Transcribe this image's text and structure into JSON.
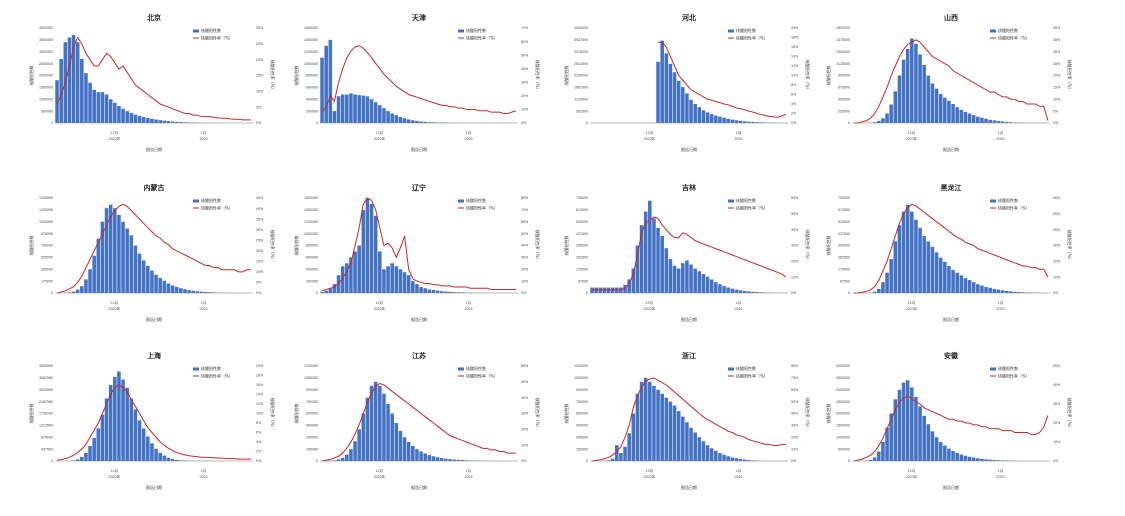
{
  "legend": {
    "bar_label": "核酸阳性数",
    "line_label": "核酸阳性率（%）"
  },
  "axes": {
    "y_left_label": "核酸阳性数",
    "y_right_label": "核酸阳性率（%）",
    "x_label": "报告日期",
    "month_label_dec": "12月",
    "month_label_jan": "1月",
    "year_label_2022": "2022年",
    "year_label_2023": "2023"
  },
  "colors": {
    "bar": "#4472c4",
    "line": "#c0282d",
    "axis": "#7f7f7f"
  },
  "chart_data": [
    {
      "type": "bar",
      "title": "北京",
      "ylim": [
        0,
        4000000
      ],
      "y2lim": [
        0,
        30
      ],
      "y2step": 5,
      "bar_values": [
        1800000,
        2700000,
        3400000,
        3600000,
        3700000,
        3400000,
        2700000,
        2100000,
        1700000,
        1400000,
        1300000,
        1300000,
        1200000,
        1000000,
        850000,
        720000,
        600000,
        500000,
        420000,
        350000,
        300000,
        250000,
        210000,
        180000,
        150000,
        120000,
        100000,
        80000,
        60000,
        50000,
        40000,
        30000,
        25000,
        20000,
        15000,
        12000,
        10000,
        8000,
        6000,
        5000,
        4000,
        3000,
        2000,
        2000,
        1000,
        1000,
        1000,
        1000
      ],
      "line_values": [
        6,
        9,
        13,
        18,
        24,
        27,
        25,
        22,
        20,
        18,
        18,
        20,
        22,
        21,
        19,
        17,
        18,
        16,
        14,
        12,
        11,
        10,
        9,
        8,
        7,
        6,
        5.5,
        5,
        4.5,
        4,
        3.5,
        3,
        3,
        2.5,
        2.5,
        2,
        2,
        2,
        1.8,
        1.6,
        1.5,
        1.5,
        1.3,
        1.2,
        1.2,
        1,
        1,
        1
      ]
    },
    {
      "type": "bar",
      "title": "天津",
      "ylim": [
        0,
        1600000
      ],
      "y2lim": [
        0,
        70
      ],
      "y2step": 10,
      "bar_values": [
        1100000,
        1300000,
        1400000,
        200000,
        450000,
        480000,
        480000,
        500000,
        480000,
        470000,
        460000,
        450000,
        400000,
        350000,
        300000,
        250000,
        200000,
        160000,
        130000,
        100000,
        80000,
        60000,
        45000,
        35000,
        25000,
        20000,
        15000,
        12000,
        10000,
        8000,
        6000,
        5000,
        4000,
        3000,
        3000,
        2000,
        2000,
        2000,
        1000,
        1000,
        1000,
        1000,
        1000,
        1000,
        1000,
        1000,
        1000,
        1000
      ],
      "line_values": [
        8,
        12,
        20,
        16,
        30,
        40,
        48,
        53,
        56,
        57,
        55,
        52,
        48,
        44,
        40,
        36,
        33,
        30,
        27,
        25,
        23,
        21,
        20,
        19,
        18,
        17,
        16,
        15,
        14,
        13,
        13,
        12,
        12,
        11,
        11,
        10,
        10,
        10,
        9,
        9,
        9,
        8,
        8,
        8,
        7,
        7,
        8,
        9
      ]
    },
    {
      "type": "bar",
      "title": "河北",
      "ylim": [
        0,
        4500000
      ],
      "y2lim": [
        0,
        20
      ],
      "y2step": 2,
      "bar_values": [
        0,
        0,
        0,
        0,
        0,
        0,
        0,
        0,
        0,
        0,
        0,
        0,
        0,
        0,
        0,
        0,
        2900000,
        3900000,
        3300000,
        2800000,
        2400000,
        2000000,
        1700000,
        1400000,
        1100000,
        900000,
        750000,
        600000,
        500000,
        420000,
        350000,
        300000,
        250000,
        200000,
        160000,
        130000,
        100000,
        80000,
        60000,
        50000,
        40000,
        30000,
        25000,
        20000,
        15000,
        12000,
        10000,
        8000
      ],
      "line_values": [
        null,
        null,
        null,
        null,
        null,
        null,
        null,
        null,
        null,
        null,
        null,
        null,
        null,
        null,
        null,
        null,
        17,
        17,
        16,
        14,
        12,
        10,
        9,
        8,
        7,
        6.5,
        6,
        5.5,
        5,
        4.8,
        4.5,
        4.3,
        4,
        3.8,
        3.5,
        3.2,
        3,
        2.8,
        2.5,
        2.3,
        2,
        1.8,
        1.6,
        1.4,
        1.3,
        1.2,
        1.5,
        1.8
      ]
    },
    {
      "type": "bar",
      "title": "山西",
      "ylim": [
        0,
        1800000
      ],
      "y2lim": [
        0,
        40
      ],
      "y2step": 5,
      "bar_values": [
        0,
        0,
        0,
        1000,
        5000,
        15000,
        40000,
        90000,
        180000,
        350000,
        600000,
        900000,
        1200000,
        1400000,
        1600000,
        1500000,
        1300000,
        1100000,
        900000,
        750000,
        650000,
        550000,
        480000,
        420000,
        360000,
        300000,
        250000,
        210000,
        180000,
        150000,
        120000,
        100000,
        80000,
        60000,
        50000,
        40000,
        30000,
        20000,
        15000,
        10000,
        8000,
        6000,
        5000,
        4000,
        3000,
        2000,
        1000,
        1000
      ],
      "line_values": [
        0,
        0,
        0.5,
        1,
        2,
        4,
        7,
        11,
        15,
        20,
        24,
        28,
        31,
        33,
        34,
        35,
        34,
        32,
        30,
        28,
        27,
        26,
        25,
        24,
        22,
        21,
        20,
        19,
        18,
        17,
        16,
        15,
        14,
        13,
        13,
        12,
        11,
        11,
        10,
        10,
        9,
        9,
        8,
        8,
        8,
        7,
        7,
        1
      ]
    },
    {
      "type": "bar",
      "title": "内蒙古",
      "ylim": [
        0,
        1400000
      ],
      "y2lim": [
        0,
        45
      ],
      "y2step": 5,
      "bar_values": [
        0,
        1000,
        3000,
        8000,
        20000,
        50000,
        100000,
        200000,
        350000,
        550000,
        800000,
        1050000,
        1250000,
        1300000,
        1250000,
        1150000,
        1050000,
        950000,
        850000,
        700000,
        580000,
        480000,
        400000,
        330000,
        270000,
        220000,
        180000,
        140000,
        110000,
        90000,
        70000,
        55000,
        42000,
        33000,
        25000,
        20000,
        15000,
        12000,
        9000,
        7000,
        5000,
        4000,
        3000,
        2000,
        2000,
        1000,
        1000,
        1000
      ],
      "line_values": [
        0,
        0.5,
        1,
        2,
        3,
        5,
        8,
        12,
        16,
        20,
        24,
        28,
        32,
        36,
        39,
        41,
        42,
        41,
        39,
        37,
        35,
        33,
        31,
        29,
        27,
        26,
        24,
        23,
        21,
        20,
        19,
        18,
        17,
        16,
        15,
        14,
        13,
        13,
        12,
        12,
        11,
        11,
        11,
        11,
        10,
        10,
        11,
        11
      ]
    },
    {
      "type": "bar",
      "title": "辽宁",
      "ylim": [
        0,
        1600000
      ],
      "y2lim": [
        0,
        80
      ],
      "y2step": 10,
      "bar_values": [
        20000,
        40000,
        80000,
        150000,
        300000,
        450000,
        500000,
        600000,
        700000,
        800000,
        1400000,
        1600000,
        1500000,
        1300000,
        700000,
        400000,
        450000,
        500000,
        450000,
        400000,
        350000,
        300000,
        200000,
        150000,
        100000,
        80000,
        60000,
        50000,
        40000,
        30000,
        25000,
        20000,
        15000,
        12000,
        10000,
        8000,
        6000,
        5000,
        4000,
        3000,
        2000,
        2000,
        1000,
        1000,
        1000,
        1000,
        1000,
        1000
      ],
      "line_values": [
        2,
        3,
        4,
        5,
        8,
        12,
        18,
        25,
        40,
        55,
        75,
        80,
        78,
        70,
        55,
        40,
        42,
        38,
        30,
        38,
        48,
        20,
        12,
        10,
        9,
        8,
        8,
        7,
        7,
        6,
        6,
        6,
        5,
        5,
        5,
        5,
        4,
        4,
        4,
        4,
        4,
        3,
        3,
        3,
        3,
        3,
        3,
        3
      ]
    },
    {
      "type": "bar",
      "title": "吉林",
      "ylim": [
        0,
        700000
      ],
      "y2lim": [
        0,
        60
      ],
      "y2step": 10,
      "bar_values": [
        40000,
        40000,
        40000,
        40000,
        40000,
        40000,
        40000,
        40000,
        60000,
        100000,
        180000,
        350000,
        500000,
        600000,
        680000,
        550000,
        480000,
        420000,
        330000,
        250000,
        200000,
        180000,
        220000,
        240000,
        210000,
        180000,
        160000,
        140000,
        120000,
        100000,
        80000,
        65000,
        50000,
        40000,
        32000,
        25000,
        20000,
        15000,
        12000,
        9000,
        7000,
        5000,
        4000,
        3000,
        2000,
        2000,
        1000,
        1000
      ],
      "line_values": [
        2,
        2,
        2,
        2,
        2,
        2,
        2,
        2,
        3,
        6,
        12,
        24,
        38,
        44,
        46,
        48,
        47,
        43,
        40,
        37,
        35,
        35,
        38,
        37,
        35,
        33,
        32,
        31,
        30,
        29,
        28,
        27,
        26,
        25,
        24,
        23,
        22,
        21,
        20,
        19,
        18,
        17,
        16,
        15,
        14,
        13,
        12,
        10
      ]
    },
    {
      "type": "bar",
      "title": "黑龙江",
      "ylim": [
        0,
        700000
      ],
      "y2lim": [
        0,
        60
      ],
      "y2step": 10,
      "bar_values": [
        0,
        0,
        0,
        1000,
        3000,
        10000,
        30000,
        80000,
        150000,
        250000,
        380000,
        500000,
        600000,
        650000,
        600000,
        540000,
        480000,
        420000,
        380000,
        340000,
        300000,
        260000,
        230000,
        200000,
        170000,
        150000,
        130000,
        110000,
        95000,
        80000,
        65000,
        55000,
        45000,
        38000,
        30000,
        25000,
        20000,
        15000,
        12000,
        9000,
        7000,
        5000,
        4000,
        3000,
        2000,
        2000,
        1000,
        1000
      ],
      "line_values": [
        0,
        0,
        0.5,
        1,
        2,
        4,
        8,
        14,
        20,
        28,
        36,
        44,
        50,
        54,
        56,
        55,
        53,
        51,
        49,
        47,
        45,
        43,
        41,
        39,
        37,
        35,
        34,
        32,
        31,
        30,
        28,
        27,
        26,
        25,
        24,
        23,
        22,
        21,
        20,
        19,
        18,
        17,
        17,
        16,
        16,
        15,
        15,
        10
      ]
    },
    {
      "type": "bar",
      "title": "上海",
      "ylim": [
        0,
        3500000
      ],
      "y2lim": [
        0,
        20
      ],
      "y2step": 2,
      "bar_values": [
        0,
        0,
        1000,
        5000,
        20000,
        60000,
        150000,
        300000,
        550000,
        850000,
        1200000,
        1700000,
        2300000,
        2800000,
        3100000,
        3300000,
        3000000,
        2700000,
        2300000,
        1900000,
        1500000,
        1200000,
        900000,
        650000,
        450000,
        300000,
        200000,
        120000,
        70000,
        40000,
        25000,
        15000,
        10000,
        7000,
        5000,
        4000,
        3000,
        2000,
        2000,
        1000,
        1000,
        1000,
        1000,
        500,
        500,
        500,
        500,
        500
      ],
      "line_values": [
        0.2,
        0.3,
        0.5,
        0.8,
        1.2,
        1.8,
        2.5,
        3.5,
        5,
        6.5,
        8,
        10,
        12,
        14,
        15.5,
        16,
        15.5,
        14.5,
        13,
        11.5,
        10,
        8.5,
        7,
        6,
        5,
        4,
        3.3,
        2.7,
        2.2,
        1.8,
        1.5,
        1.3,
        1.1,
        1,
        0.9,
        0.8,
        0.8,
        0.7,
        0.7,
        0.6,
        0.6,
        0.5,
        0.5,
        0.5,
        0.4,
        0.4,
        0.4,
        0.4
      ]
    },
    {
      "type": "bar",
      "title": "江苏",
      "ylim": [
        0,
        1200000
      ],
      "y2lim": [
        0,
        60
      ],
      "y2step": 10,
      "bar_values": [
        0,
        1000,
        3000,
        8000,
        20000,
        40000,
        80000,
        150000,
        250000,
        400000,
        600000,
        800000,
        950000,
        1000000,
        950000,
        850000,
        720000,
        600000,
        480000,
        380000,
        300000,
        240000,
        190000,
        150000,
        120000,
        95000,
        75000,
        60000,
        48000,
        38000,
        30000,
        24000,
        19000,
        15000,
        12000,
        9000,
        7000,
        5500,
        4500,
        3500,
        2800,
        2200,
        1800,
        1400,
        1100,
        900,
        700,
        600
      ],
      "line_values": [
        0,
        0.5,
        1,
        2,
        3,
        5,
        8,
        12,
        17,
        23,
        30,
        37,
        43,
        47,
        49,
        48,
        46,
        44,
        42,
        40,
        38,
        36,
        34,
        32,
        30,
        28,
        26,
        24,
        22,
        20,
        18,
        16,
        15,
        14,
        13,
        12,
        11,
        10,
        9,
        8,
        8,
        7,
        7,
        6,
        6,
        5,
        5,
        5
      ]
    },
    {
      "type": "bar",
      "title": "浙江",
      "ylim": [
        0,
        1200000
      ],
      "y2lim": [
        0,
        80
      ],
      "y2step": 10,
      "bar_values": [
        0,
        0,
        1000,
        3000,
        10000,
        30000,
        200000,
        100000,
        180000,
        350000,
        600000,
        850000,
        1000000,
        1050000,
        1000000,
        950000,
        900000,
        850000,
        800000,
        750000,
        700000,
        630000,
        560000,
        490000,
        420000,
        360000,
        300000,
        250000,
        200000,
        160000,
        130000,
        100000,
        80000,
        60000,
        45000,
        35000,
        25000,
        18000,
        12000,
        8000,
        5000,
        3000,
        2000,
        1000,
        1000,
        1000,
        1000,
        1000
      ],
      "line_values": [
        0,
        0.5,
        1,
        2,
        3,
        5,
        8,
        12,
        20,
        30,
        45,
        55,
        62,
        67,
        69,
        70,
        68,
        66,
        64,
        61,
        58,
        55,
        52,
        49,
        46,
        43,
        40,
        37,
        35,
        33,
        31,
        29,
        27,
        25,
        24,
        22,
        21,
        20,
        18,
        17,
        16,
        15,
        14,
        14,
        13,
        13,
        14,
        14
      ]
    },
    {
      "type": "bar",
      "title": "安徽",
      "ylim": [
        0,
        4000000
      ],
      "y2lim": [
        0,
        50
      ],
      "y2step": 10,
      "bar_values": [
        0,
        1000,
        5000,
        15000,
        50000,
        150000,
        400000,
        800000,
        1400000,
        2000000,
        2600000,
        3000000,
        3300000,
        3400000,
        3100000,
        2700000,
        2300000,
        1900000,
        1550000,
        1250000,
        1000000,
        800000,
        650000,
        520000,
        420000,
        340000,
        270000,
        220000,
        180000,
        145000,
        115000,
        90000,
        70000,
        55000,
        42000,
        32000,
        25000,
        19000,
        14000,
        10000,
        8000,
        6000,
        4000,
        3000,
        2000,
        2000,
        1000,
        1000
      ],
      "line_values": [
        0,
        0.5,
        1,
        2,
        3,
        5,
        8,
        12,
        17,
        22,
        27,
        31,
        33,
        34,
        33,
        31,
        30,
        28,
        27,
        26,
        25,
        24,
        23,
        22,
        22,
        21,
        21,
        20,
        20,
        19,
        19,
        18,
        18,
        17,
        17,
        17,
        16,
        16,
        16,
        15,
        15,
        15,
        15,
        14,
        14,
        15,
        18,
        24
      ]
    }
  ]
}
